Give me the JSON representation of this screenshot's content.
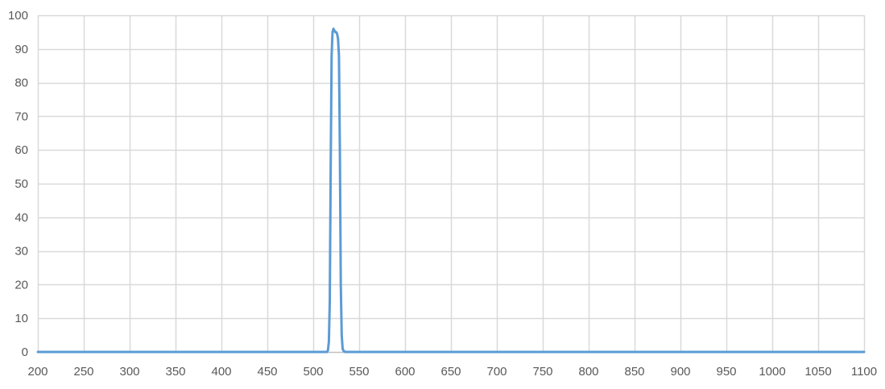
{
  "chart_data": {
    "type": "line",
    "title": "",
    "xlabel": "",
    "ylabel": "",
    "xlim": [
      200,
      1100
    ],
    "ylim": [
      0,
      100
    ],
    "x_ticks": [
      200,
      250,
      300,
      350,
      400,
      450,
      500,
      550,
      600,
      650,
      700,
      750,
      800,
      850,
      900,
      950,
      1000,
      1050,
      1100
    ],
    "y_ticks": [
      0,
      10,
      20,
      30,
      40,
      50,
      60,
      70,
      80,
      90,
      100
    ],
    "grid": true,
    "legend": "none",
    "colors": {
      "line": "#5b9bd5",
      "grid": "#d9d9d9",
      "axis": "#bfbfbf"
    },
    "series": [
      {
        "x": [
          200,
          500,
          515,
          516,
          517,
          518,
          519,
          520,
          521,
          522,
          523,
          524,
          525,
          526,
          527,
          528,
          529,
          530,
          531,
          532,
          533,
          535,
          540,
          1100
        ],
        "y": [
          0,
          0,
          0,
          0.5,
          3,
          15,
          55,
          88,
          95,
          96,
          95.5,
          95,
          95,
          94.5,
          93,
          88,
          60,
          20,
          5,
          1,
          0.3,
          0,
          0,
          0
        ]
      }
    ]
  }
}
